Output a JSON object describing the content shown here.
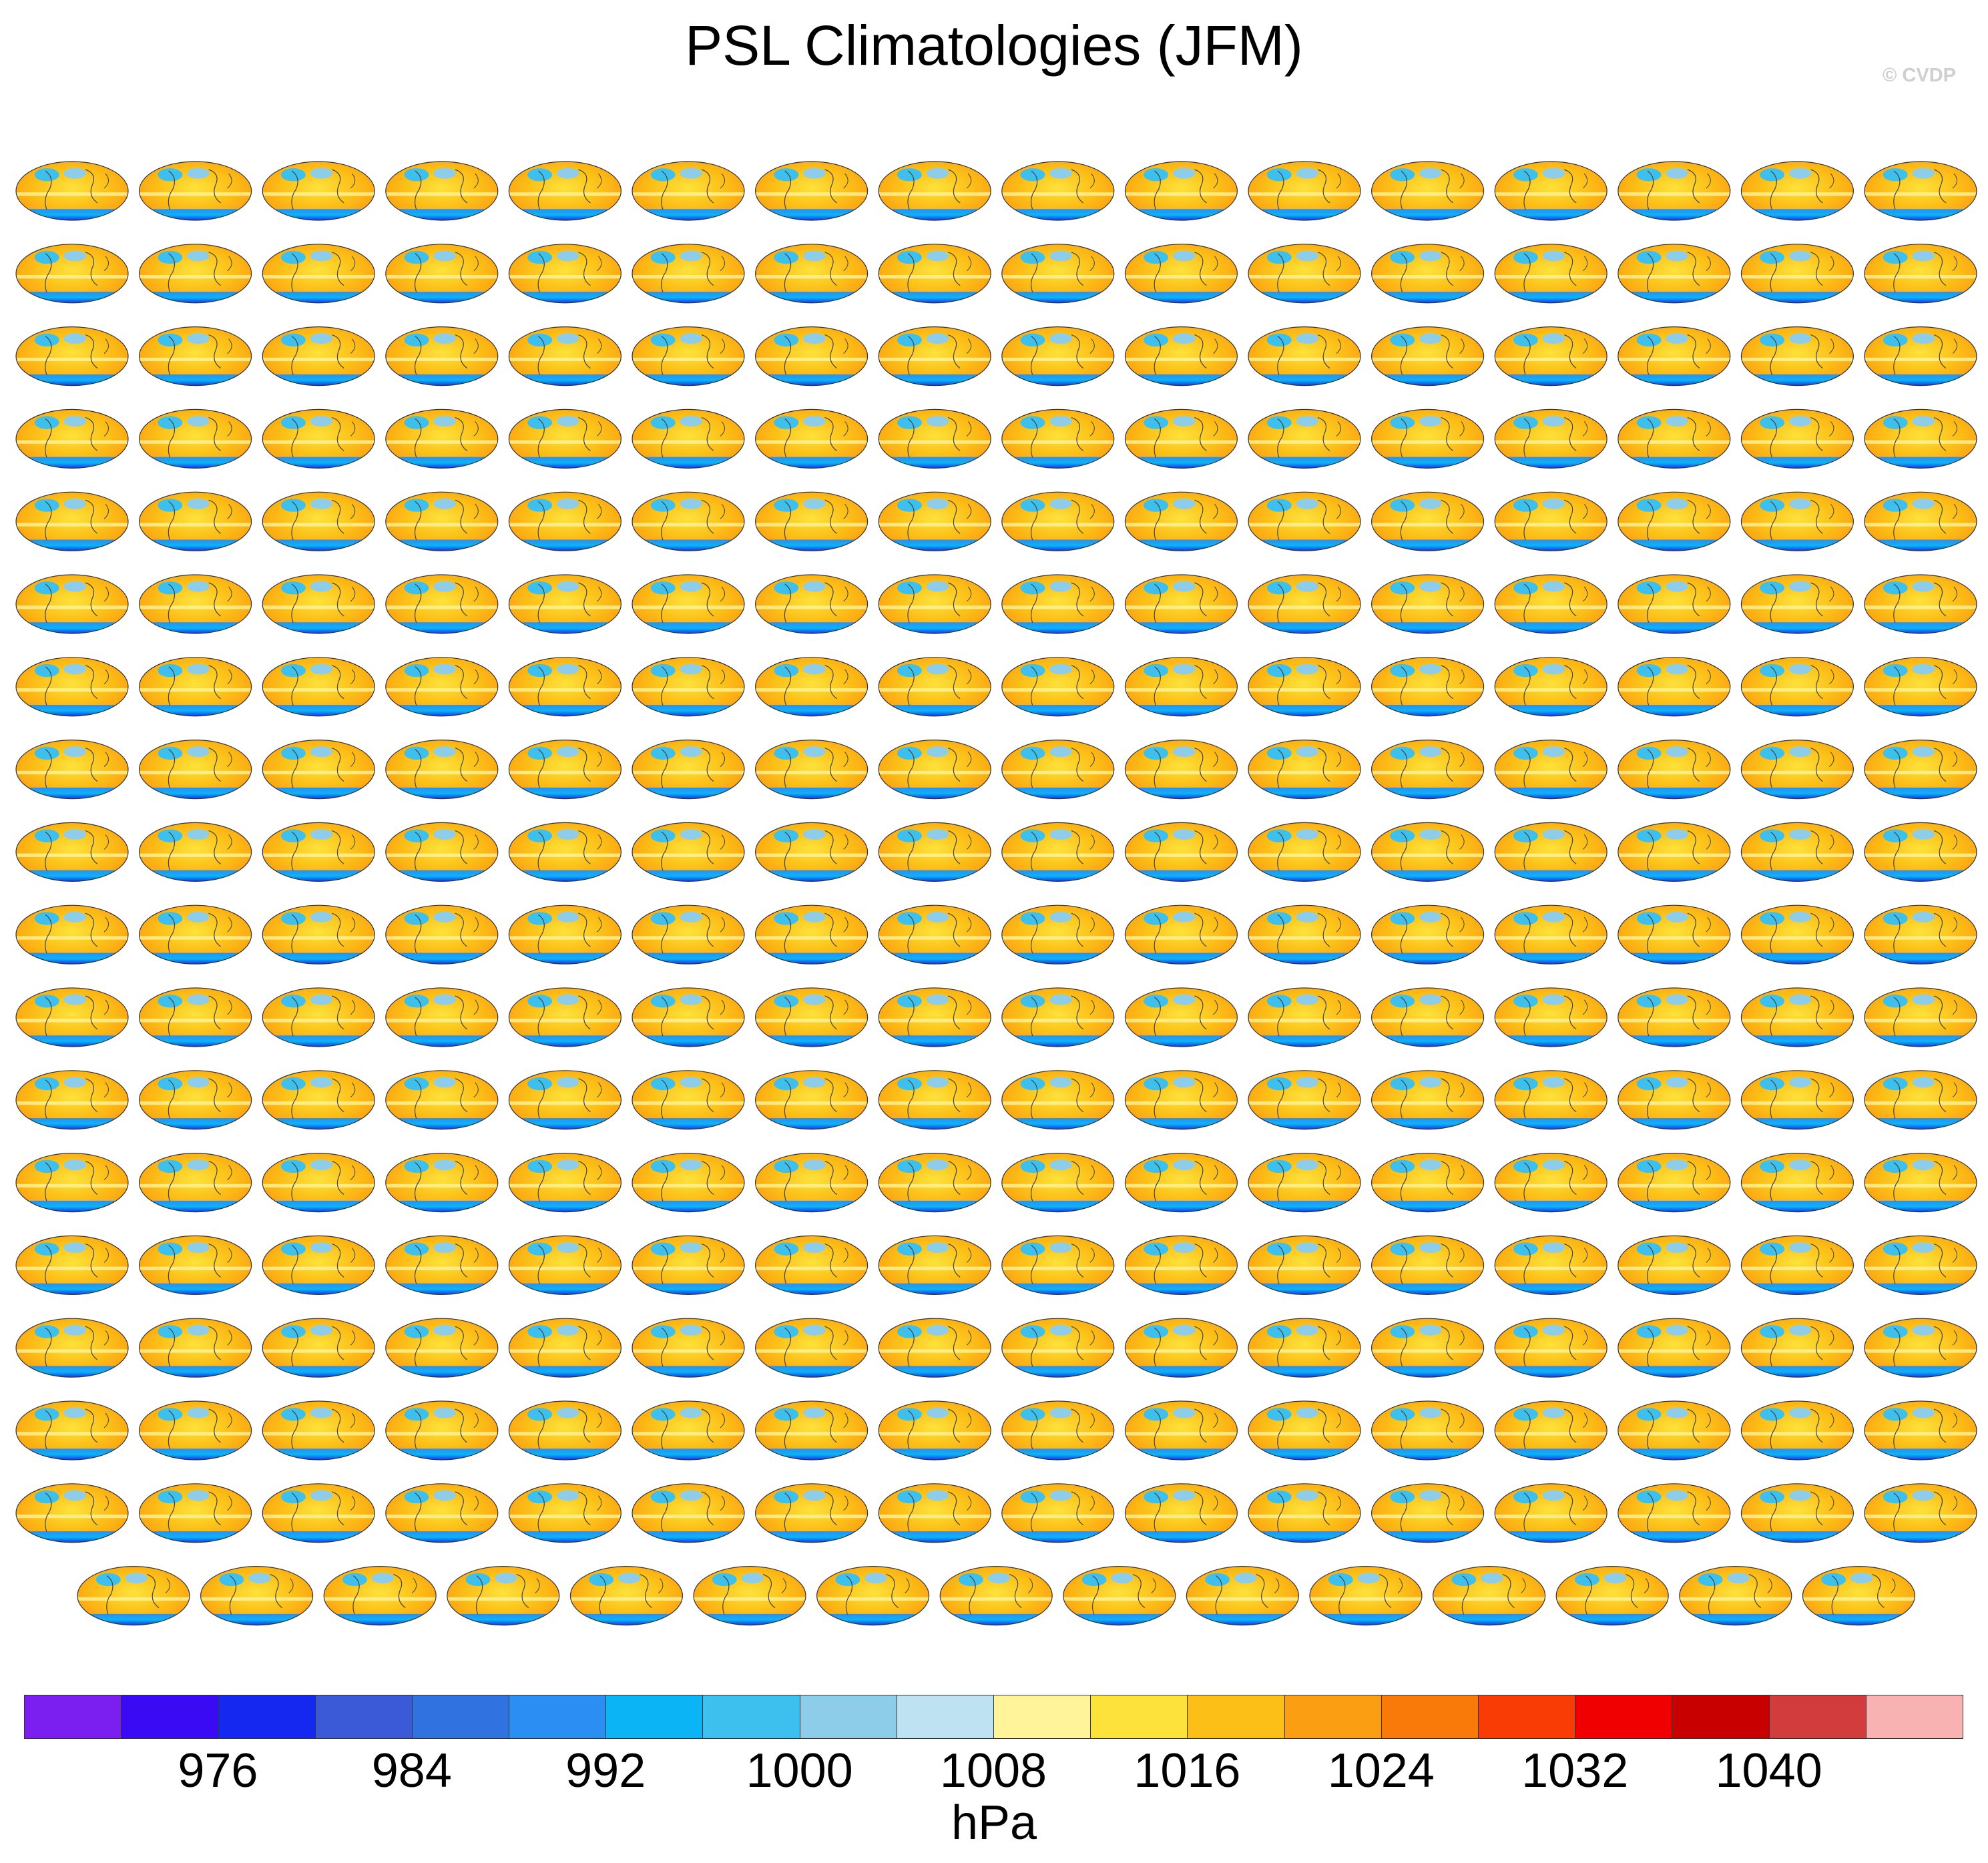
{
  "page": {
    "credit": "© CVDP"
  },
  "chart_data": {
    "type": "heatmap",
    "title": "PSL Climatologies (JFM)",
    "units": "hPa",
    "variable": "PSL",
    "season": "JFM",
    "projection": "global map (Robinson-like ellipse)",
    "panel_count": 287,
    "panel_grid": {
      "rows": 18,
      "columns": 16,
      "last_row_panels": 15
    },
    "colorbar": {
      "ticks": [
        "976",
        "984",
        "992",
        "1000",
        "1008",
        "1016",
        "1024",
        "1032",
        "1040"
      ],
      "colors": [
        "#7a1ff0",
        "#3a0af5",
        "#1428f0",
        "#3a5ad8",
        "#2f72e0",
        "#2b8ef2",
        "#0bb4f5",
        "#3ec0ef",
        "#8ecdea",
        "#bfe2f2",
        "#fff49a",
        "#fde23b",
        "#fcbf17",
        "#fb9e12",
        "#f97a08",
        "#f93c05",
        "#f00000",
        "#c80000",
        "#d23c3c",
        "#f9b2b2"
      ]
    }
  }
}
